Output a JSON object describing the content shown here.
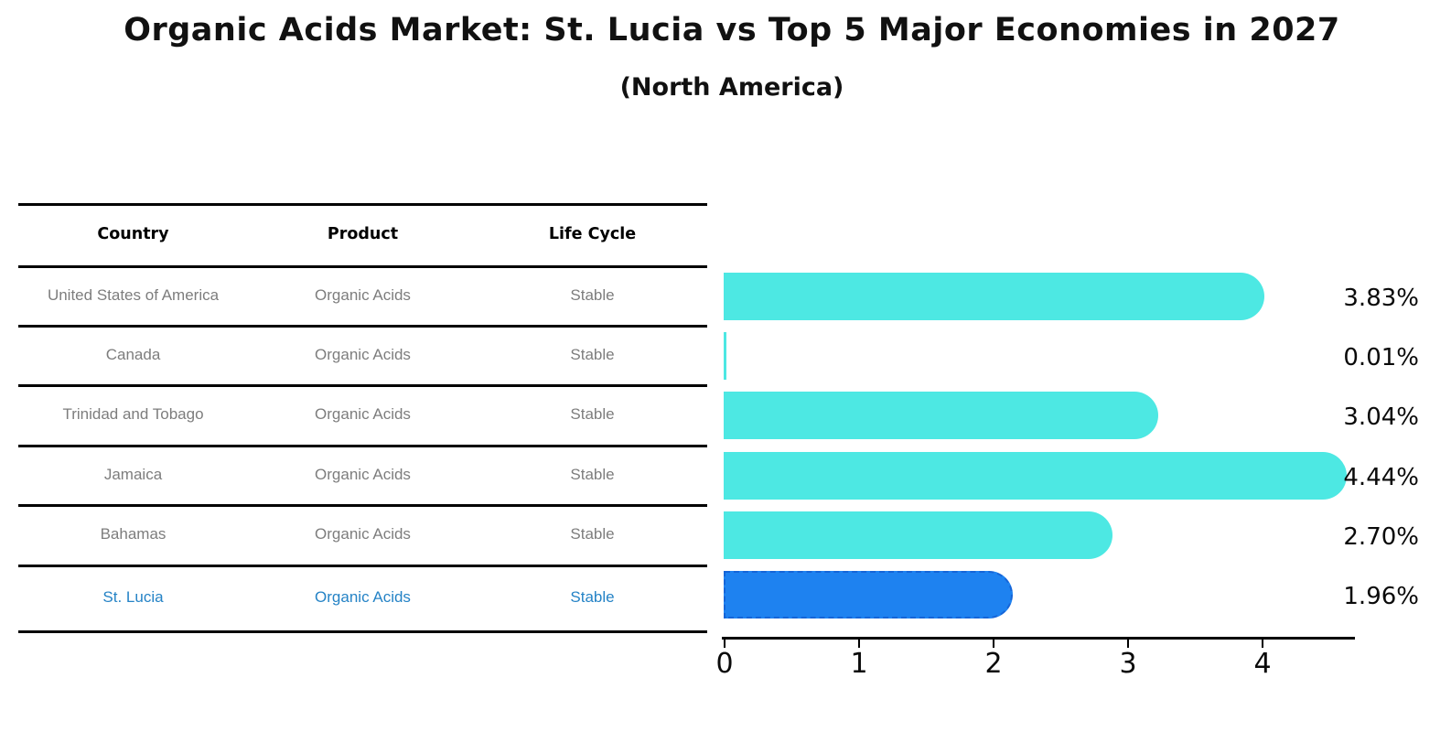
{
  "title": "Organic Acids Market: St. Lucia vs Top 5 Major Economies in 2027",
  "subtitle": "(North America)",
  "table": {
    "headers": [
      "Country",
      "Product",
      "Life Cycle"
    ],
    "rows": [
      {
        "country": "United States of America",
        "product": "Organic Acids",
        "life_cycle": "Stable",
        "highlight": false
      },
      {
        "country": "Canada",
        "product": "Organic Acids",
        "life_cycle": "Stable",
        "highlight": false
      },
      {
        "country": "Trinidad and Tobago",
        "product": "Organic Acids",
        "life_cycle": "Stable",
        "highlight": false
      },
      {
        "country": "Jamaica",
        "product": "Organic Acids",
        "life_cycle": "Stable",
        "highlight": false
      },
      {
        "country": "Bahamas",
        "product": "Organic Acids",
        "life_cycle": "Stable",
        "highlight": false
      },
      {
        "country": "St. Lucia",
        "product": "Organic Acids",
        "life_cycle": "Stable",
        "highlight": true
      }
    ]
  },
  "chart_data": {
    "type": "bar",
    "orientation": "horizontal",
    "categories": [
      "United States of America",
      "Canada",
      "Trinidad and Tobago",
      "Jamaica",
      "Bahamas",
      "St. Lucia"
    ],
    "values": [
      3.83,
      0.01,
      3.04,
      4.44,
      2.7,
      1.96
    ],
    "value_labels": [
      "3.83%",
      "0.01%",
      "3.04%",
      "4.44%",
      "2.70%",
      "1.96%"
    ],
    "xticks": [
      0,
      1,
      2,
      3,
      4
    ],
    "xlim": [
      0,
      4.67
    ],
    "grid": false,
    "legend": "none",
    "highlight_index": 5,
    "colors": {
      "bar": "#4DE8E3",
      "highlight_bar": "#1E82F0",
      "highlight_border": "#1565D8",
      "highlight_text": "#2583C6"
    }
  }
}
